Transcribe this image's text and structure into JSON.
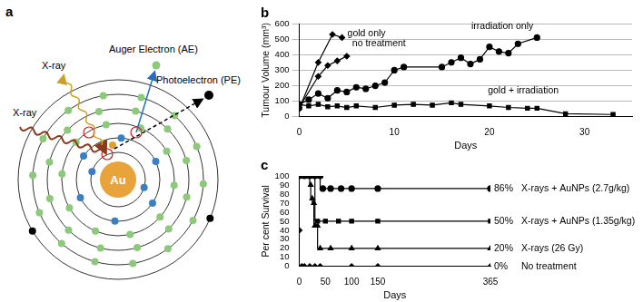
{
  "diagram": {
    "label": "a",
    "nucleus": "Au",
    "incoming_ray": "X-ray",
    "emitted_ray": "X-ray",
    "auger_electron": "Auger Electron (AE)",
    "photoelectron": "Photoelectron (PE)"
  },
  "chart_data": [
    {
      "type": "line",
      "title": "b",
      "x_label": "Days",
      "y_label": "Tumour Volume (mm³)",
      "xlim": [
        0,
        35
      ],
      "xticks": [
        0,
        10,
        20,
        30
      ],
      "ylim": [
        0,
        600
      ],
      "yticks": [
        0,
        100,
        200,
        300,
        400,
        500,
        600
      ],
      "grid": true,
      "series": [
        {
          "name": "gold only",
          "color": "#000000",
          "marker": "diamond",
          "x": [
            0,
            2,
            3.5,
            4.5
          ],
          "values": [
            50,
            350,
            530,
            510
          ]
        },
        {
          "name": "no treatment",
          "color": "#000000",
          "marker": "diamond",
          "x": [
            0,
            2,
            3,
            4,
            5
          ],
          "values": [
            60,
            260,
            330,
            360,
            390
          ]
        },
        {
          "name": "irradiation only",
          "color": "#000000",
          "marker": "circle",
          "x": [
            0,
            1,
            2,
            3,
            4,
            5,
            6,
            7,
            8,
            9,
            10,
            11,
            15,
            16,
            17,
            18,
            19,
            20,
            21,
            22,
            23,
            25
          ],
          "values": [
            80,
            110,
            150,
            120,
            170,
            160,
            190,
            180,
            200,
            220,
            300,
            320,
            320,
            350,
            380,
            340,
            370,
            450,
            420,
            410,
            470,
            510
          ]
        },
        {
          "name": "gold + irradiation",
          "color": "#000000",
          "marker": "square",
          "x": [
            0,
            1,
            2,
            3,
            4,
            5,
            6,
            8,
            10,
            12,
            14,
            16,
            17,
            20,
            22,
            24,
            25,
            28,
            33
          ],
          "values": [
            80,
            70,
            80,
            65,
            70,
            60,
            70,
            60,
            75,
            80,
            75,
            90,
            80,
            70,
            60,
            55,
            55,
            20,
            15
          ]
        }
      ]
    },
    {
      "type": "line",
      "title": "c",
      "x_label": "Days",
      "y_label": "Per cent Survival",
      "xlim": [
        0,
        365
      ],
      "xticks": [
        0,
        50,
        100,
        150,
        365
      ],
      "ylim": [
        0,
        100
      ],
      "yticks": [
        0,
        10,
        20,
        30,
        40,
        50,
        60,
        70,
        80,
        90,
        100
      ],
      "grid": false,
      "series": [
        {
          "name": "X-rays + AuNPs (2.7g/kg)",
          "annotation": "86%",
          "color": "#000000",
          "marker": "circle",
          "line_style": "steps",
          "x": [
            0,
            10,
            20,
            30,
            40,
            45,
            60,
            80,
            100,
            150,
            365
          ],
          "values": [
            100,
            100,
            100,
            100,
            100,
            86,
            86,
            86,
            86,
            86,
            86
          ]
        },
        {
          "name": "X-rays + AuNPs (1.35g/kg)",
          "annotation": "50%",
          "color": "#000000",
          "marker": "square",
          "line_style": "steps",
          "x": [
            0,
            10,
            20,
            30,
            35,
            50,
            75,
            100,
            150,
            365
          ],
          "values": [
            100,
            100,
            100,
            100,
            50,
            50,
            50,
            50,
            50,
            50
          ]
        },
        {
          "name": "X-rays (26 Gy)",
          "annotation": "20%",
          "color": "#000000",
          "marker": "triangle",
          "line_style": "steps",
          "x": [
            15,
            20,
            22,
            25,
            28,
            30,
            35,
            40,
            60,
            100,
            150,
            365
          ],
          "values": [
            100,
            100,
            90,
            75,
            70,
            45,
            45,
            20,
            20,
            20,
            20,
            20
          ]
        },
        {
          "name": "No treatment",
          "annotation": "0%",
          "color": "#000000",
          "marker": "diamond",
          "line_style": "steps",
          "x": [
            0,
            5,
            10,
            20,
            30,
            40,
            100,
            150,
            365
          ],
          "values": [
            40,
            0,
            0,
            0,
            0,
            0,
            0,
            0,
            0
          ]
        }
      ]
    }
  ]
}
